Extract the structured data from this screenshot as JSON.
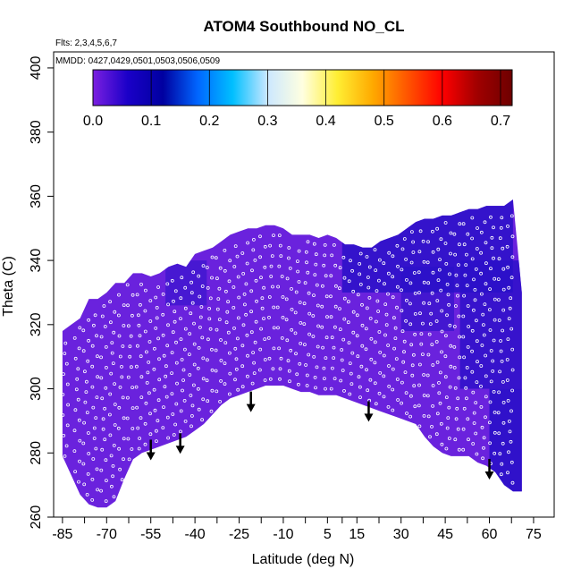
{
  "chart_data": {
    "type": "heatmap",
    "title": "ATOM4 Southbound NO_CL",
    "annotations": [
      "Flts: 2,3,4,5,6,7",
      "MMDD: 0427,0429,0501,0503,0506,0509"
    ],
    "xlabel": "Latitude (deg N)",
    "ylabel": "Theta (C)",
    "xlim": [
      -88,
      82
    ],
    "ylim": [
      260,
      405
    ],
    "x_ticks": [
      -85,
      -70,
      -55,
      -40,
      -25,
      -10,
      5,
      15,
      30,
      45,
      60,
      75
    ],
    "x_tick_labels": [
      "-85",
      "-70",
      "-55",
      "-40",
      "-25",
      "-10",
      "5",
      "15",
      "30",
      "45",
      "60",
      "75"
    ],
    "y_ticks": [
      260,
      280,
      300,
      320,
      340,
      360,
      380,
      400
    ],
    "y_tick_labels": [
      "260",
      "280",
      "300",
      "320",
      "340",
      "360",
      "380",
      "400"
    ],
    "colorbar": {
      "range": [
        0.0,
        0.72
      ],
      "ticks": [
        0.0,
        0.1,
        0.2,
        0.3,
        0.4,
        0.5,
        0.6,
        0.7
      ],
      "tick_labels": [
        "0.0",
        "0.1",
        "0.2",
        "0.3",
        "0.4",
        "0.5",
        "0.6",
        "0.7"
      ],
      "colors": [
        "#7b1fe0",
        "#1a00c8",
        "#0000a0",
        "#0066ff",
        "#00bfff",
        "#cce8ff",
        "#ffffe0",
        "#ffee33",
        "#ffaa00",
        "#ff5500",
        "#ff0000",
        "#a00000",
        "#6e0000"
      ]
    },
    "field_color": "#6a22dd",
    "dark_patch_color": "#2a10c8",
    "points_color": "#ffffff",
    "grid": false,
    "coverage": {
      "lat": [
        -85,
        -82,
        -79,
        -76,
        -73,
        -70,
        -67,
        -64,
        -61,
        -58,
        -55,
        -52,
        -49,
        -46,
        -43,
        -40,
        -37,
        -34,
        -31,
        -28,
        -25,
        -22,
        -19,
        -16,
        -13,
        -10,
        -7,
        -4,
        -1,
        2,
        5,
        8,
        11,
        14,
        17,
        20,
        23,
        26,
        29,
        32,
        35,
        38,
        41,
        44,
        47,
        50,
        53,
        56,
        59,
        62,
        65,
        68,
        71
      ],
      "theta_top": [
        318,
        320,
        322,
        328,
        328,
        330,
        333,
        333,
        336,
        336,
        335,
        336,
        338,
        339,
        338,
        342,
        343,
        344,
        346,
        348,
        349,
        350,
        350,
        351,
        351,
        350,
        348,
        348,
        348,
        347,
        348,
        347,
        345,
        345,
        344,
        344,
        346,
        347,
        348,
        350,
        352,
        353,
        353,
        354,
        354,
        355,
        356,
        356,
        357,
        357,
        357,
        359,
        330
      ],
      "theta_bottom": [
        279,
        273,
        267,
        264,
        263,
        263,
        265,
        272,
        278,
        280,
        281,
        282,
        283,
        284,
        285,
        287,
        289,
        292,
        295,
        297,
        298,
        299,
        300,
        301,
        301,
        301,
        300,
        299,
        299,
        298,
        298,
        298,
        297,
        296,
        295,
        294,
        293,
        292,
        291,
        290,
        289,
        285,
        282,
        280,
        279,
        279,
        279,
        277,
        276,
        274,
        270,
        268,
        268
      ]
    },
    "flight_tracks_lat": [
      -84,
      -80,
      -77,
      -74,
      -71,
      -68,
      -65,
      -62,
      -59,
      -56,
      -53,
      -50,
      -47,
      -44,
      -41,
      -38,
      -35,
      -32,
      -29,
      -26,
      -23,
      -20,
      -17,
      -14,
      -11,
      -8,
      -5,
      -2,
      1,
      4,
      7,
      10,
      13,
      16,
      19,
      22,
      25,
      28,
      31,
      34,
      37,
      40,
      43,
      46,
      49,
      52,
      55,
      58,
      61,
      64,
      67
    ],
    "arrows": [
      {
        "lat": -55,
        "theta": 278
      },
      {
        "lat": -45,
        "theta": 280
      },
      {
        "lat": -21,
        "theta": 293
      },
      {
        "lat": 19,
        "theta": 290
      },
      {
        "lat": 60,
        "theta": 272
      }
    ]
  }
}
